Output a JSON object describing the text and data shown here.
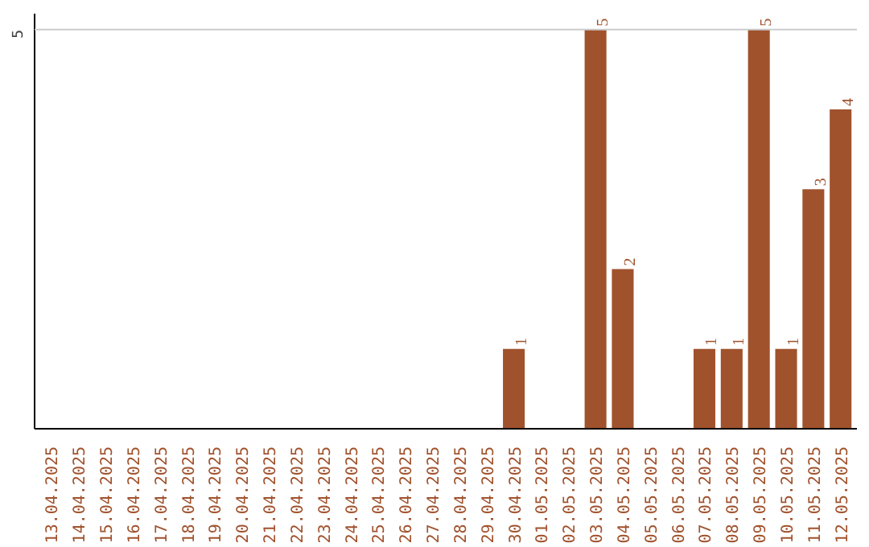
{
  "chart_data": {
    "type": "bar",
    "categories": [
      "13.04.2025",
      "14.04.2025",
      "15.04.2025",
      "16.04.2025",
      "17.04.2025",
      "18.04.2025",
      "19.04.2025",
      "20.04.2025",
      "21.04.2025",
      "22.04.2025",
      "23.04.2025",
      "24.04.2025",
      "25.04.2025",
      "26.04.2025",
      "27.04.2025",
      "28.04.2025",
      "29.04.2025",
      "30.04.2025",
      "01.05.2025",
      "02.05.2025",
      "03.05.2025",
      "04.05.2025",
      "05.05.2025",
      "06.05.2025",
      "07.05.2025",
      "08.05.2025",
      "09.05.2025",
      "10.05.2025",
      "11.05.2025",
      "12.05.2025"
    ],
    "values": [
      null,
      null,
      null,
      null,
      null,
      null,
      null,
      null,
      null,
      null,
      null,
      null,
      null,
      null,
      null,
      null,
      null,
      1,
      null,
      null,
      5,
      2,
      null,
      null,
      1,
      1,
      5,
      1,
      3,
      4
    ],
    "value_labels": [
      null,
      null,
      null,
      null,
      null,
      null,
      null,
      null,
      null,
      null,
      null,
      null,
      null,
      null,
      null,
      null,
      null,
      "1",
      null,
      null,
      "5",
      "2",
      null,
      null,
      "1",
      "1",
      "5",
      "1",
      "3",
      "4"
    ],
    "color": "#a0522d",
    "ref_lines": [
      {
        "axis": "y",
        "value": 5,
        "label": "5",
        "color": "#cccccc"
      }
    ]
  }
}
